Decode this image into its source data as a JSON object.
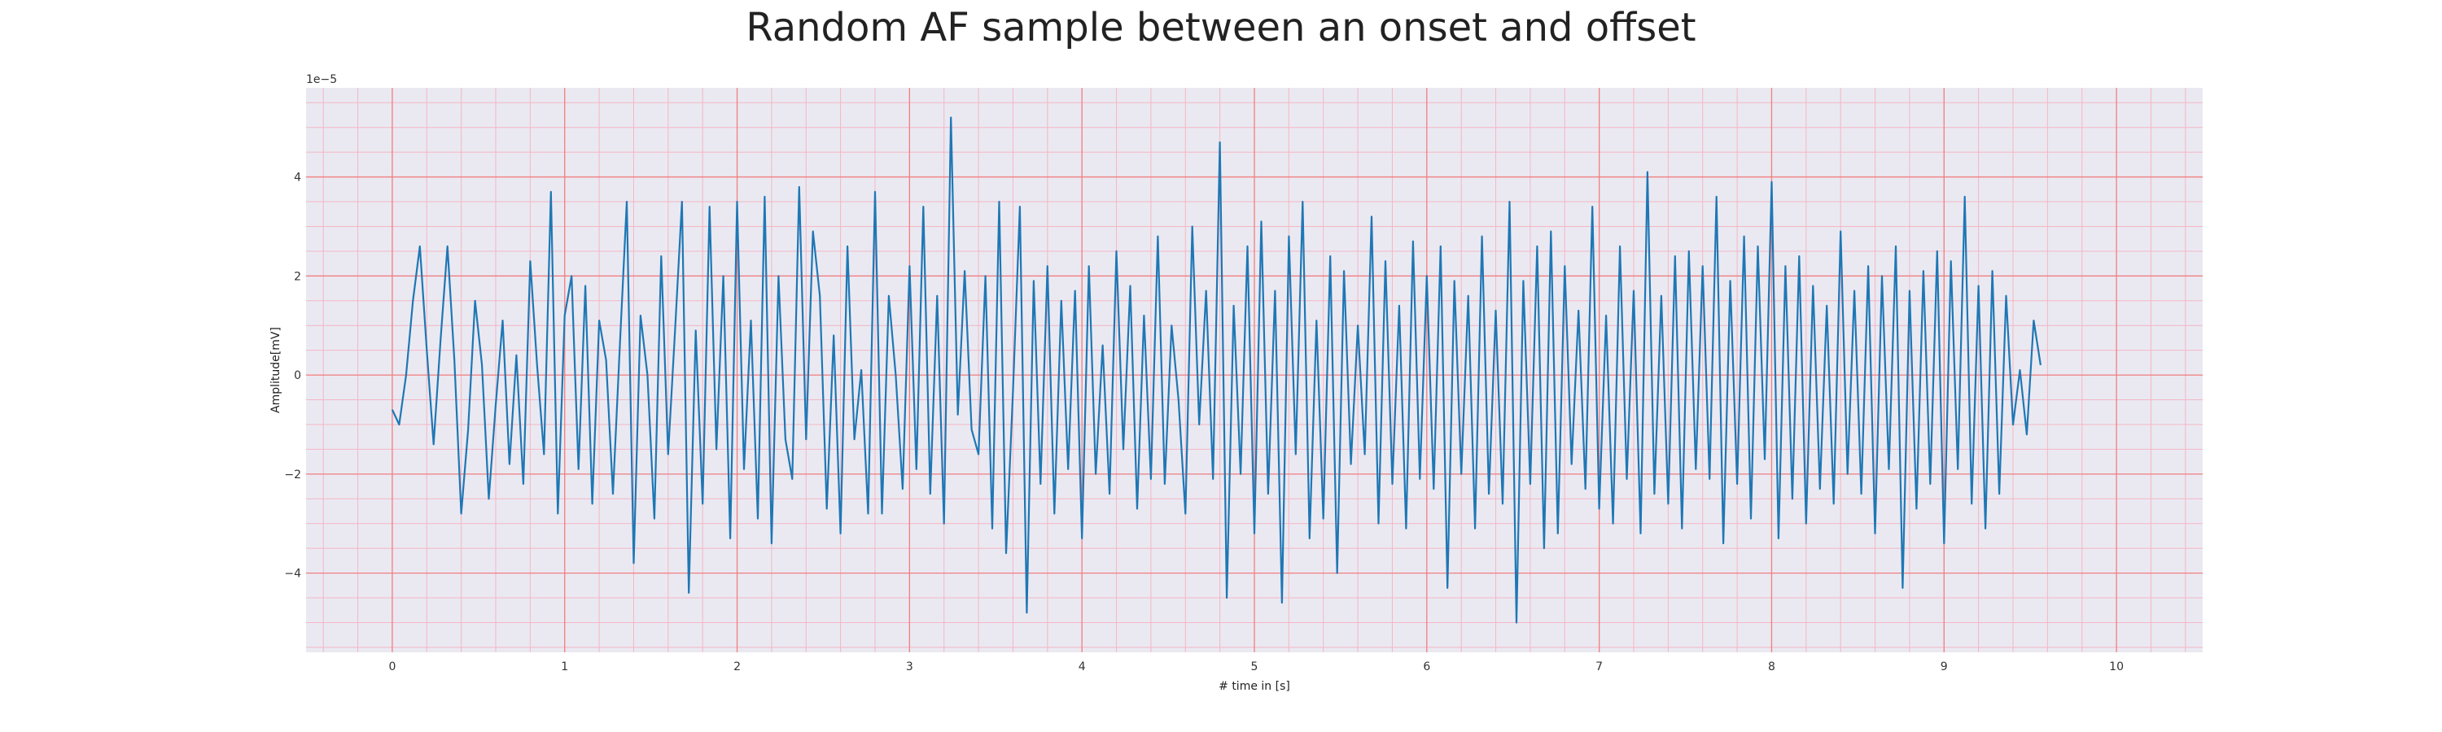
{
  "chart_data": {
    "type": "line",
    "title": "Random AF sample between an onset and offset",
    "xlabel": "# time in [s]",
    "ylabel": "Amplitude[mV]",
    "y_scale_label": "1e−5",
    "xlim": [
      -0.5,
      10.5
    ],
    "ylim": [
      -5.6,
      5.8
    ],
    "x_ticks": [
      0,
      1,
      2,
      3,
      4,
      5,
      6,
      7,
      8,
      9,
      10
    ],
    "x_tick_labels": [
      "0",
      "1",
      "2",
      "3",
      "4",
      "5",
      "6",
      "7",
      "8",
      "9",
      "10"
    ],
    "y_ticks": [
      -4,
      -2,
      0,
      2,
      4
    ],
    "y_tick_labels": [
      "−4",
      "−2",
      "0",
      "2",
      "4"
    ],
    "grid": "major red, minor pink",
    "colors": {
      "line": "#1f77b4",
      "plot_bg": "#eae9f2",
      "major_grid": "#f08080",
      "minor_grid": "#f4b6c2"
    },
    "series": [
      {
        "name": "AF sample",
        "x_start": 0,
        "x_step": 0.04,
        "values": [
          -0.7,
          -1.0,
          0.0,
          1.5,
          2.6,
          0.5,
          -1.4,
          0.7,
          2.6,
          0.3,
          -2.8,
          -1.1,
          1.5,
          0.2,
          -2.5,
          -0.6,
          1.1,
          -1.8,
          0.4,
          -2.2,
          2.3,
          0.2,
          -1.6,
          3.7,
          -2.8,
          1.2,
          2.0,
          -1.9,
          1.8,
          -2.6,
          1.1,
          0.3,
          -2.4,
          0.6,
          3.5,
          -3.8,
          1.2,
          0.0,
          -2.9,
          2.4,
          -1.6,
          0.9,
          3.5,
          -4.4,
          0.9,
          -2.6,
          3.4,
          -1.5,
          2.0,
          -3.3,
          3.5,
          -1.9,
          1.1,
          -2.9,
          3.6,
          -3.4,
          2.0,
          -1.3,
          -2.1,
          3.8,
          -1.3,
          2.9,
          1.6,
          -2.7,
          0.8,
          -3.2,
          2.6,
          -1.3,
          0.1,
          -2.8,
          3.7,
          -2.8,
          1.6,
          0.0,
          -2.3,
          2.2,
          -1.9,
          3.4,
          -2.4,
          1.6,
          -3.0,
          5.2,
          -0.8,
          2.1,
          -1.1,
          -1.6,
          2.0,
          -3.1,
          3.5,
          -3.6,
          -0.3,
          3.4,
          -4.8,
          1.9,
          -2.2,
          2.2,
          -2.8,
          1.5,
          -1.9,
          1.7,
          -3.3,
          2.2,
          -2.0,
          0.6,
          -2.4,
          2.5,
          -1.5,
          1.8,
          -2.7,
          1.2,
          -2.1,
          2.8,
          -2.2,
          1.0,
          -0.5,
          -2.8,
          3.0,
          -1.0,
          1.7,
          -2.1,
          4.7,
          -4.5,
          1.4,
          -2.0,
          2.6,
          -3.2,
          3.1,
          -2.4,
          1.7,
          -4.6,
          2.8,
          -1.6,
          3.5,
          -3.3,
          1.1,
          -2.9,
          2.4,
          -4.0,
          2.1,
          -1.8,
          1.0,
          -1.6,
          3.2,
          -3.0,
          2.3,
          -2.2,
          1.4,
          -3.1,
          2.7,
          -2.1,
          2.0,
          -2.3,
          2.6,
          -4.3,
          1.9,
          -2.0,
          1.6,
          -3.1,
          2.8,
          -2.4,
          1.3,
          -2.6,
          3.5,
          -5.0,
          1.9,
          -2.2,
          2.6,
          -3.5,
          2.9,
          -3.2,
          2.2,
          -1.8,
          1.3,
          -2.3,
          3.4,
          -2.7,
          1.2,
          -3.0,
          2.6,
          -2.1,
          1.7,
          -3.2,
          4.1,
          -2.4,
          1.6,
          -2.6,
          2.4,
          -3.1,
          2.5,
          -1.9,
          2.2,
          -2.1,
          3.6,
          -3.4,
          1.9,
          -2.2,
          2.8,
          -2.9,
          2.6,
          -1.7,
          3.9,
          -3.3,
          2.2,
          -2.5,
          2.4,
          -3.0,
          1.8,
          -2.3,
          1.4,
          -2.6,
          2.9,
          -2.0,
          1.7,
          -2.4,
          2.2,
          -3.2,
          2.0,
          -1.9,
          2.6,
          -4.3,
          1.7,
          -2.7,
          2.1,
          -2.2,
          2.5,
          -3.4,
          2.3,
          -1.9,
          3.6,
          -2.6,
          1.8,
          -3.1,
          2.1,
          -2.4,
          1.6,
          -1.0,
          0.1,
          -1.2,
          1.1,
          0.2
        ]
      }
    ]
  }
}
